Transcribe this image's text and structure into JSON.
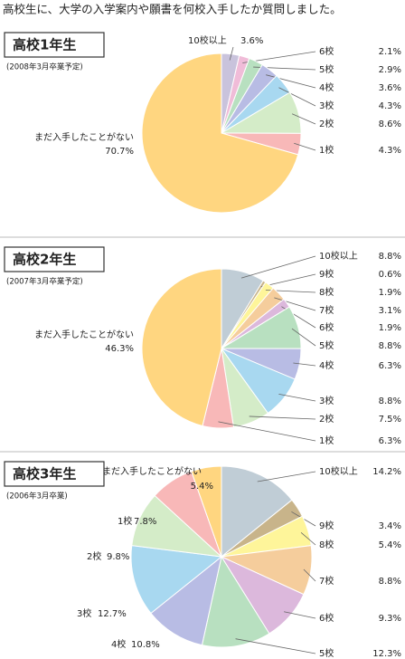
{
  "header": "高校生に、大学の入学案内や願書を何校入手したか質問しました。",
  "chart_data": [
    {
      "type": "pie",
      "title": "高校1年生",
      "subtitle": "(2008年3月卒業予定)",
      "categories": [
        "10校以上",
        "6校",
        "5校",
        "4校",
        "3校",
        "2校",
        "1校",
        "まだ入手したことがない"
      ],
      "values": [
        3.6,
        2.1,
        2.9,
        3.6,
        4.3,
        8.6,
        4.3,
        70.7
      ],
      "value_labels": [
        "3.6%",
        "2.1%",
        "2.9%",
        "3.6%",
        "4.3%",
        "8.6%",
        "4.3%",
        "70.7%"
      ],
      "colors": [
        "#c9c3dc",
        "#f0bcd8",
        "#b8e0c0",
        "#b8bce4",
        "#a8d8f0",
        "#d4ecc8",
        "#f8b8b8",
        "#ffd680"
      ]
    },
    {
      "type": "pie",
      "title": "高校2年生",
      "subtitle": "(2007年3月卒業予定)",
      "categories": [
        "10校以上",
        "9校",
        "8校",
        "7校",
        "6校",
        "5校",
        "4校",
        "3校",
        "2校",
        "1校",
        "まだ入手したことがない"
      ],
      "values": [
        8.8,
        0.6,
        1.9,
        3.1,
        1.9,
        8.8,
        6.3,
        8.8,
        7.5,
        6.3,
        46.3
      ],
      "value_labels": [
        "8.8%",
        "0.6%",
        "1.9%",
        "3.1%",
        "1.9%",
        "8.8%",
        "6.3%",
        "8.8%",
        "7.5%",
        "6.3%",
        "46.3%"
      ],
      "colors": [
        "#c0cdd6",
        "#c8b48a",
        "#fef59a",
        "#f5cd9c",
        "#dcb8dc",
        "#b8e0c0",
        "#b8bce4",
        "#a8d8f0",
        "#d4ecc8",
        "#f8b8b8",
        "#ffd680"
      ]
    },
    {
      "type": "pie",
      "title": "高校3年生",
      "subtitle": "(2006年3月卒業)",
      "categories": [
        "10校以上",
        "9校",
        "8校",
        "7校",
        "6校",
        "5校",
        "4校",
        "3校",
        "2校",
        "1校",
        "まだ入手したことがない"
      ],
      "values": [
        14.2,
        3.4,
        5.4,
        8.8,
        9.3,
        12.3,
        10.8,
        12.7,
        9.8,
        7.8,
        5.4
      ],
      "value_labels": [
        "14.2%",
        "3.4%",
        "5.4%",
        "8.8%",
        "9.3%",
        "12.3%",
        "10.8%",
        "12.7%",
        "9.8%",
        "7.8%",
        "5.4%"
      ],
      "colors": [
        "#c0cdd6",
        "#c8b48a",
        "#fef59a",
        "#f5cd9c",
        "#dcb8dc",
        "#b8e0c0",
        "#b8bce4",
        "#a8d8f0",
        "#d4ecc8",
        "#f8b8b8",
        "#ffd680"
      ]
    }
  ]
}
